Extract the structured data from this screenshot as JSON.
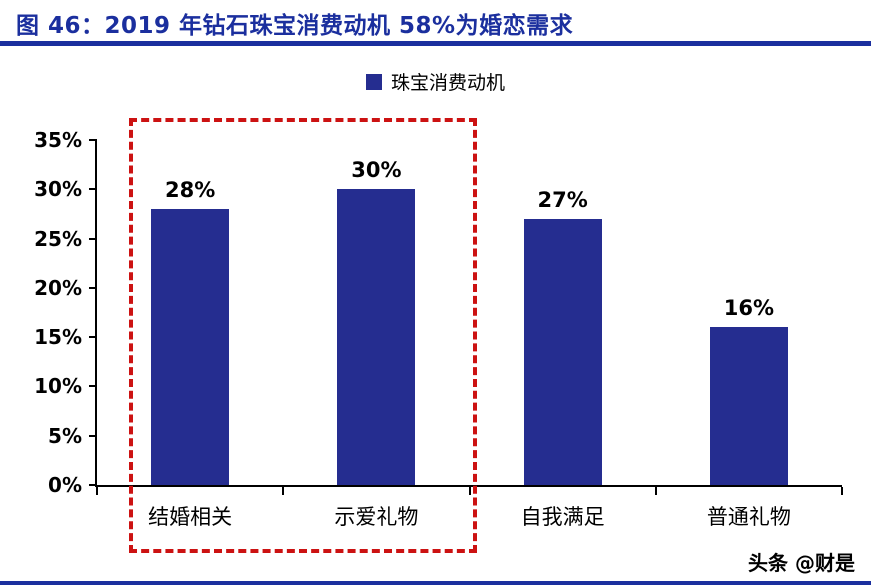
{
  "header": {
    "title": "图 46：2019 年钻石珠宝消费动机 58%为婚恋需求"
  },
  "legend": {
    "label": "珠宝消费动机",
    "swatch_color": "#252d90"
  },
  "chart_data": {
    "type": "bar",
    "title": "2019 年钻石珠宝消费动机",
    "categories": [
      "结婚相关",
      "示爱礼物",
      "自我满足",
      "普通礼物"
    ],
    "values": [
      28,
      30,
      27,
      16
    ],
    "value_labels": [
      "28%",
      "30%",
      "27%",
      "16%"
    ],
    "series_name": "珠宝消费动机",
    "xlabel": "",
    "ylabel": "",
    "ylim": [
      0,
      35
    ],
    "ytick_step": 5,
    "ytick_labels": [
      "0%",
      "5%",
      "10%",
      "15%",
      "20%",
      "25%",
      "30%",
      "35%"
    ],
    "bar_color": "#252d90",
    "grid": false,
    "legend_position": "top-center",
    "highlight": {
      "categories": [
        "结婚相关",
        "示爱礼物"
      ],
      "style": "dashed-box",
      "color": "#cc1212"
    }
  },
  "footer": {
    "watermark": "头条 @财是"
  },
  "colors": {
    "accent_blue": "#1b2f9e",
    "bar_blue": "#252d90",
    "highlight_red": "#cc1212"
  }
}
